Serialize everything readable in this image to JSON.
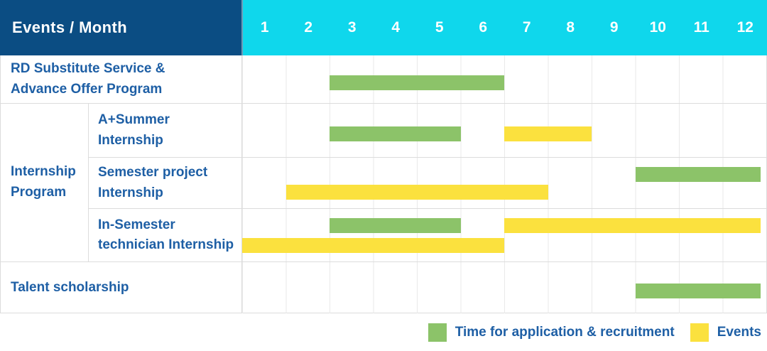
{
  "header": {
    "label": "Events / Month"
  },
  "chart_data": {
    "type": "gantt",
    "x_axis": {
      "unit": "Month",
      "range": [
        1,
        12
      ]
    },
    "months": [
      "1",
      "2",
      "3",
      "4",
      "5",
      "6",
      "7",
      "8",
      "9",
      "10",
      "11",
      "12"
    ],
    "group": {
      "label": "Internship\nProgram"
    },
    "rows": [
      {
        "label": "RD Substitute Service &\nAdvance Offer Program",
        "group": null,
        "bars": [
          {
            "series": "Time for application & recruitment",
            "color_key": "green",
            "start_month": 3,
            "end_month": 6,
            "lane": "mid"
          }
        ]
      },
      {
        "label": "A+Summer\nInternship",
        "group": "Internship Program",
        "bars": [
          {
            "series": "Time for application & recruitment",
            "color_key": "green",
            "start_month": 3,
            "end_month": 5,
            "lane": "mid"
          },
          {
            "series": "Events",
            "color_key": "yellow",
            "start_month": 7,
            "end_month": 8,
            "lane": "mid"
          }
        ]
      },
      {
        "label": "Semester project\nInternship",
        "group": "Internship Program",
        "bars": [
          {
            "series": "Time for application & recruitment",
            "color_key": "green",
            "start_month": 10,
            "end_month": 12,
            "lane": "top",
            "inset_right": true
          },
          {
            "series": "Events",
            "color_key": "yellow",
            "start_month": 2,
            "end_month": 7,
            "lane": "bottom"
          }
        ]
      },
      {
        "label": "In-Semester\ntechnician Internship",
        "group": "Internship Program",
        "bars": [
          {
            "series": "Time for application & recruitment",
            "color_key": "green",
            "start_month": 3,
            "end_month": 5,
            "lane": "top"
          },
          {
            "series": "Events",
            "color_key": "yellow",
            "start_month": 7,
            "end_month": 12,
            "lane": "top",
            "inset_right": true
          },
          {
            "series": "Events",
            "color_key": "yellow",
            "start_month": 1,
            "end_month": 6,
            "lane": "bottom"
          }
        ]
      },
      {
        "label": "Talent scholarship",
        "group": null,
        "bars": [
          {
            "series": "Time for application & recruitment",
            "color_key": "green",
            "start_month": 10,
            "end_month": 12,
            "lane": "mid",
            "inset_right": true
          }
        ]
      }
    ]
  },
  "legend": {
    "items": [
      {
        "label": "Time for application & recruitment",
        "color_key": "green"
      },
      {
        "label": "Events",
        "color_key": "yellow"
      }
    ]
  },
  "colors": {
    "green": "#8CC369",
    "yellow": "#FBE13E",
    "header_navy": "#0B4D83",
    "header_cyan": "#0FD7EC",
    "header_divider": "#6D98B6",
    "label_blue": "#1E5FA5",
    "row_border": "#DCDCDC",
    "grid_line": "#EAEAEA"
  }
}
